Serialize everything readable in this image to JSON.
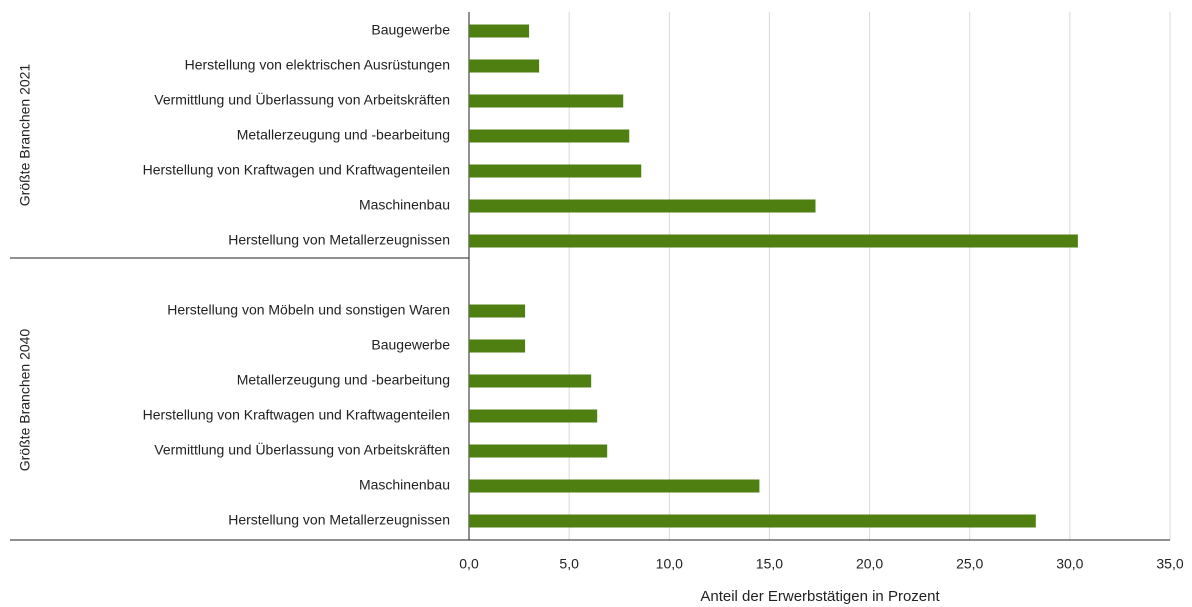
{
  "chart_data": {
    "type": "bar",
    "orientation": "horizontal",
    "color": "#4e7f10",
    "xlabel": "Anteil der Erwerbstätigen in Prozent",
    "xlim": [
      0,
      35
    ],
    "xticks": [
      {
        "value": 0,
        "label": "0,0"
      },
      {
        "value": 5,
        "label": "5,0"
      },
      {
        "value": 10,
        "label": "10,0"
      },
      {
        "value": 15,
        "label": "15,0"
      },
      {
        "value": 20,
        "label": "20,0"
      },
      {
        "value": 25,
        "label": "25,0"
      },
      {
        "value": 30,
        "label": "30,0"
      },
      {
        "value": 35,
        "label": "35,0"
      }
    ],
    "grid": true,
    "groups": [
      {
        "name": "Größte Branchen 2021",
        "categories": [
          "Baugewerbe",
          "Herstellung von elektrischen Ausrüstungen",
          "Vermittlung und Überlassung von Arbeitskräften",
          "Metallerzeugung und -bearbeitung",
          "Herstellung von Kraftwagen und Kraftwagenteilen",
          "Maschinenbau",
          "Herstellung von Metallerzeugnissen"
        ],
        "values": [
          3.0,
          3.5,
          7.7,
          8.0,
          8.6,
          17.3,
          30.4
        ]
      },
      {
        "name": "Größte Branchen 2040",
        "categories": [
          "Herstellung von Möbeln und sonstigen Waren",
          "Baugewerbe",
          "Metallerzeugung und -bearbeitung",
          "Herstellung von Kraftwagen und Kraftwagenteilen",
          "Vermittlung und Überlassung von Arbeitskräften",
          "Maschinenbau",
          "Herstellung von Metallerzeugnissen"
        ],
        "values": [
          2.8,
          2.8,
          6.1,
          6.4,
          6.9,
          14.5,
          28.3
        ]
      }
    ]
  }
}
